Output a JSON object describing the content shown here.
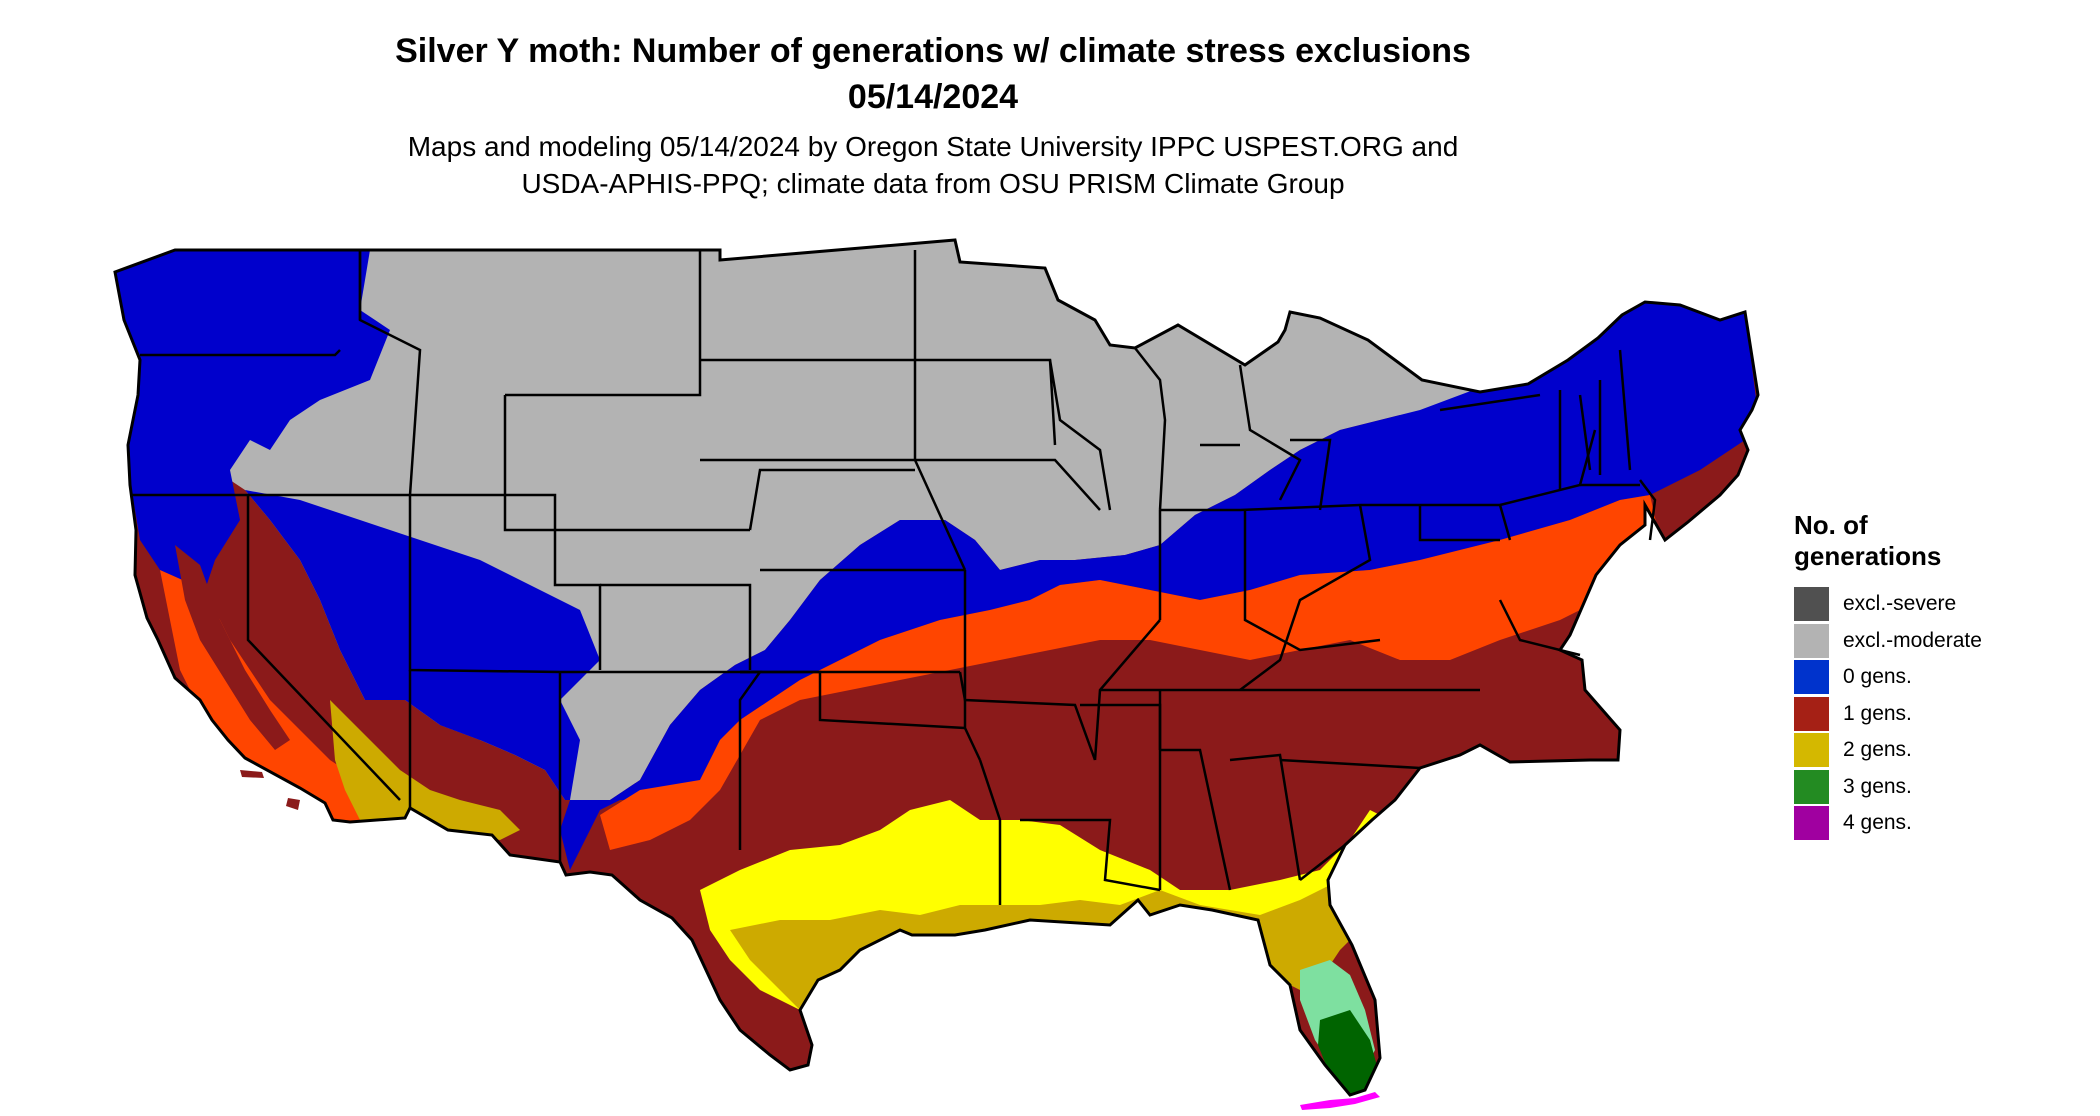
{
  "header": {
    "title_line1": "Silver Y moth: Number of generations w/ climate stress exclusions",
    "title_line2": "05/14/2024",
    "subtitle_line1": "Maps and modeling 05/14/2024 by Oregon State University IPPC USPEST.ORG and",
    "subtitle_line2": "USDA-APHIS-PPQ; climate data from OSU PRISM Climate Group"
  },
  "legend": {
    "title_line1": "No. of",
    "title_line2": "generations",
    "items": [
      {
        "label": "excl.-severe",
        "color": "#505050"
      },
      {
        "label": "excl.-moderate",
        "color": "#b3b3b3"
      },
      {
        "label": "0 gens.",
        "color": "#0033cc"
      },
      {
        "label": "1 gens.",
        "color": "#a52015"
      },
      {
        "label": "2 gens.",
        "color": "#d4b800"
      },
      {
        "label": "3 gens.",
        "color": "#238b22"
      },
      {
        "label": "4 gens.",
        "color": "#a000a0"
      }
    ]
  },
  "map": {
    "colors": {
      "excl_moderate": "#b3b3b3",
      "zero_gens": "#0000cc",
      "one_gens": "#8b1a1a",
      "one_gens_fringe": "#ff4500",
      "two_gens": "#cdaa00",
      "two_gens_bright": "#ffff00",
      "three_gens": "#006400",
      "three_gens_light": "#7ee0a0",
      "four_gens": "#ff00ff",
      "border": "#000000"
    }
  }
}
